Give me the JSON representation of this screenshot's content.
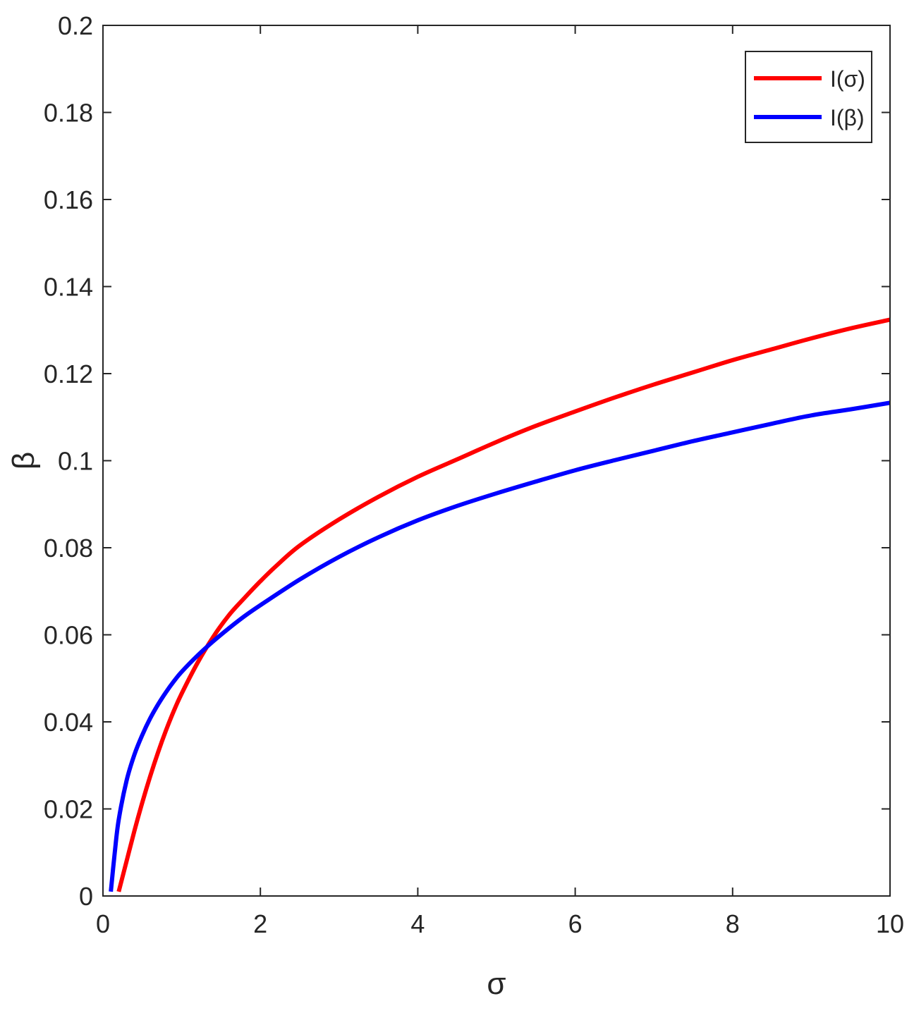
{
  "chart_data": {
    "type": "line",
    "xlabel": "σ",
    "ylabel": "β",
    "xlim": [
      0,
      10
    ],
    "ylim": [
      0,
      0.2
    ],
    "xticks": [
      0,
      2,
      4,
      6,
      8,
      10
    ],
    "yticks": [
      0,
      0.02,
      0.04,
      0.06,
      0.08,
      0.1,
      0.12,
      0.14,
      0.16,
      0.18,
      0.2
    ],
    "xtick_labels": [
      "0",
      "2",
      "4",
      "6",
      "8",
      "10"
    ],
    "ytick_labels": [
      "0",
      "0.02",
      "0.04",
      "0.06",
      "0.08",
      "0.1",
      "0.12",
      "0.14",
      "0.16",
      "0.18",
      "0.2"
    ],
    "grid": false,
    "box": true,
    "legend_position": "top-right",
    "series": [
      {
        "name": "I(σ)",
        "color": "#ff0000",
        "x": [
          0.2,
          0.3,
          0.4,
          0.5,
          0.6,
          0.7,
          0.8,
          0.9,
          1.0,
          1.2,
          1.4,
          1.6,
          1.8,
          2.0,
          2.2,
          2.5,
          3.0,
          3.5,
          4.0,
          4.5,
          5.0,
          5.5,
          6.0,
          6.5,
          7.0,
          7.5,
          8.0,
          8.5,
          9.0,
          9.5,
          10.0
        ],
        "y": [
          0.001,
          0.008,
          0.015,
          0.0215,
          0.0275,
          0.033,
          0.038,
          0.0425,
          0.0465,
          0.0535,
          0.0595,
          0.0645,
          0.0685,
          0.0723,
          0.0758,
          0.0805,
          0.0865,
          0.0917,
          0.0963,
          0.1003,
          0.1043,
          0.108,
          0.1113,
          0.1145,
          0.1175,
          0.1203,
          0.1231,
          0.1256,
          0.1281,
          0.1304,
          0.1324
        ]
      },
      {
        "name": "I(β)",
        "color": "#0000ff",
        "x": [
          0.1,
          0.15,
          0.2,
          0.3,
          0.4,
          0.5,
          0.6,
          0.7,
          0.8,
          0.9,
          1.0,
          1.2,
          1.4,
          1.6,
          1.8,
          2.0,
          2.5,
          3.0,
          3.5,
          4.0,
          4.5,
          5.0,
          5.5,
          6.0,
          6.5,
          7.0,
          7.5,
          8.0,
          8.5,
          9.0,
          9.5,
          10.0
        ],
        "y": [
          0.001,
          0.01,
          0.0175,
          0.0265,
          0.0325,
          0.037,
          0.0408,
          0.044,
          0.0468,
          0.0493,
          0.0515,
          0.0552,
          0.0585,
          0.0615,
          0.0643,
          0.0668,
          0.0727,
          0.0779,
          0.0824,
          0.0863,
          0.0896,
          0.0925,
          0.0952,
          0.0978,
          0.1001,
          0.1023,
          0.1045,
          0.1065,
          0.1085,
          0.1104,
          0.1118,
          0.1133
        ]
      }
    ]
  }
}
